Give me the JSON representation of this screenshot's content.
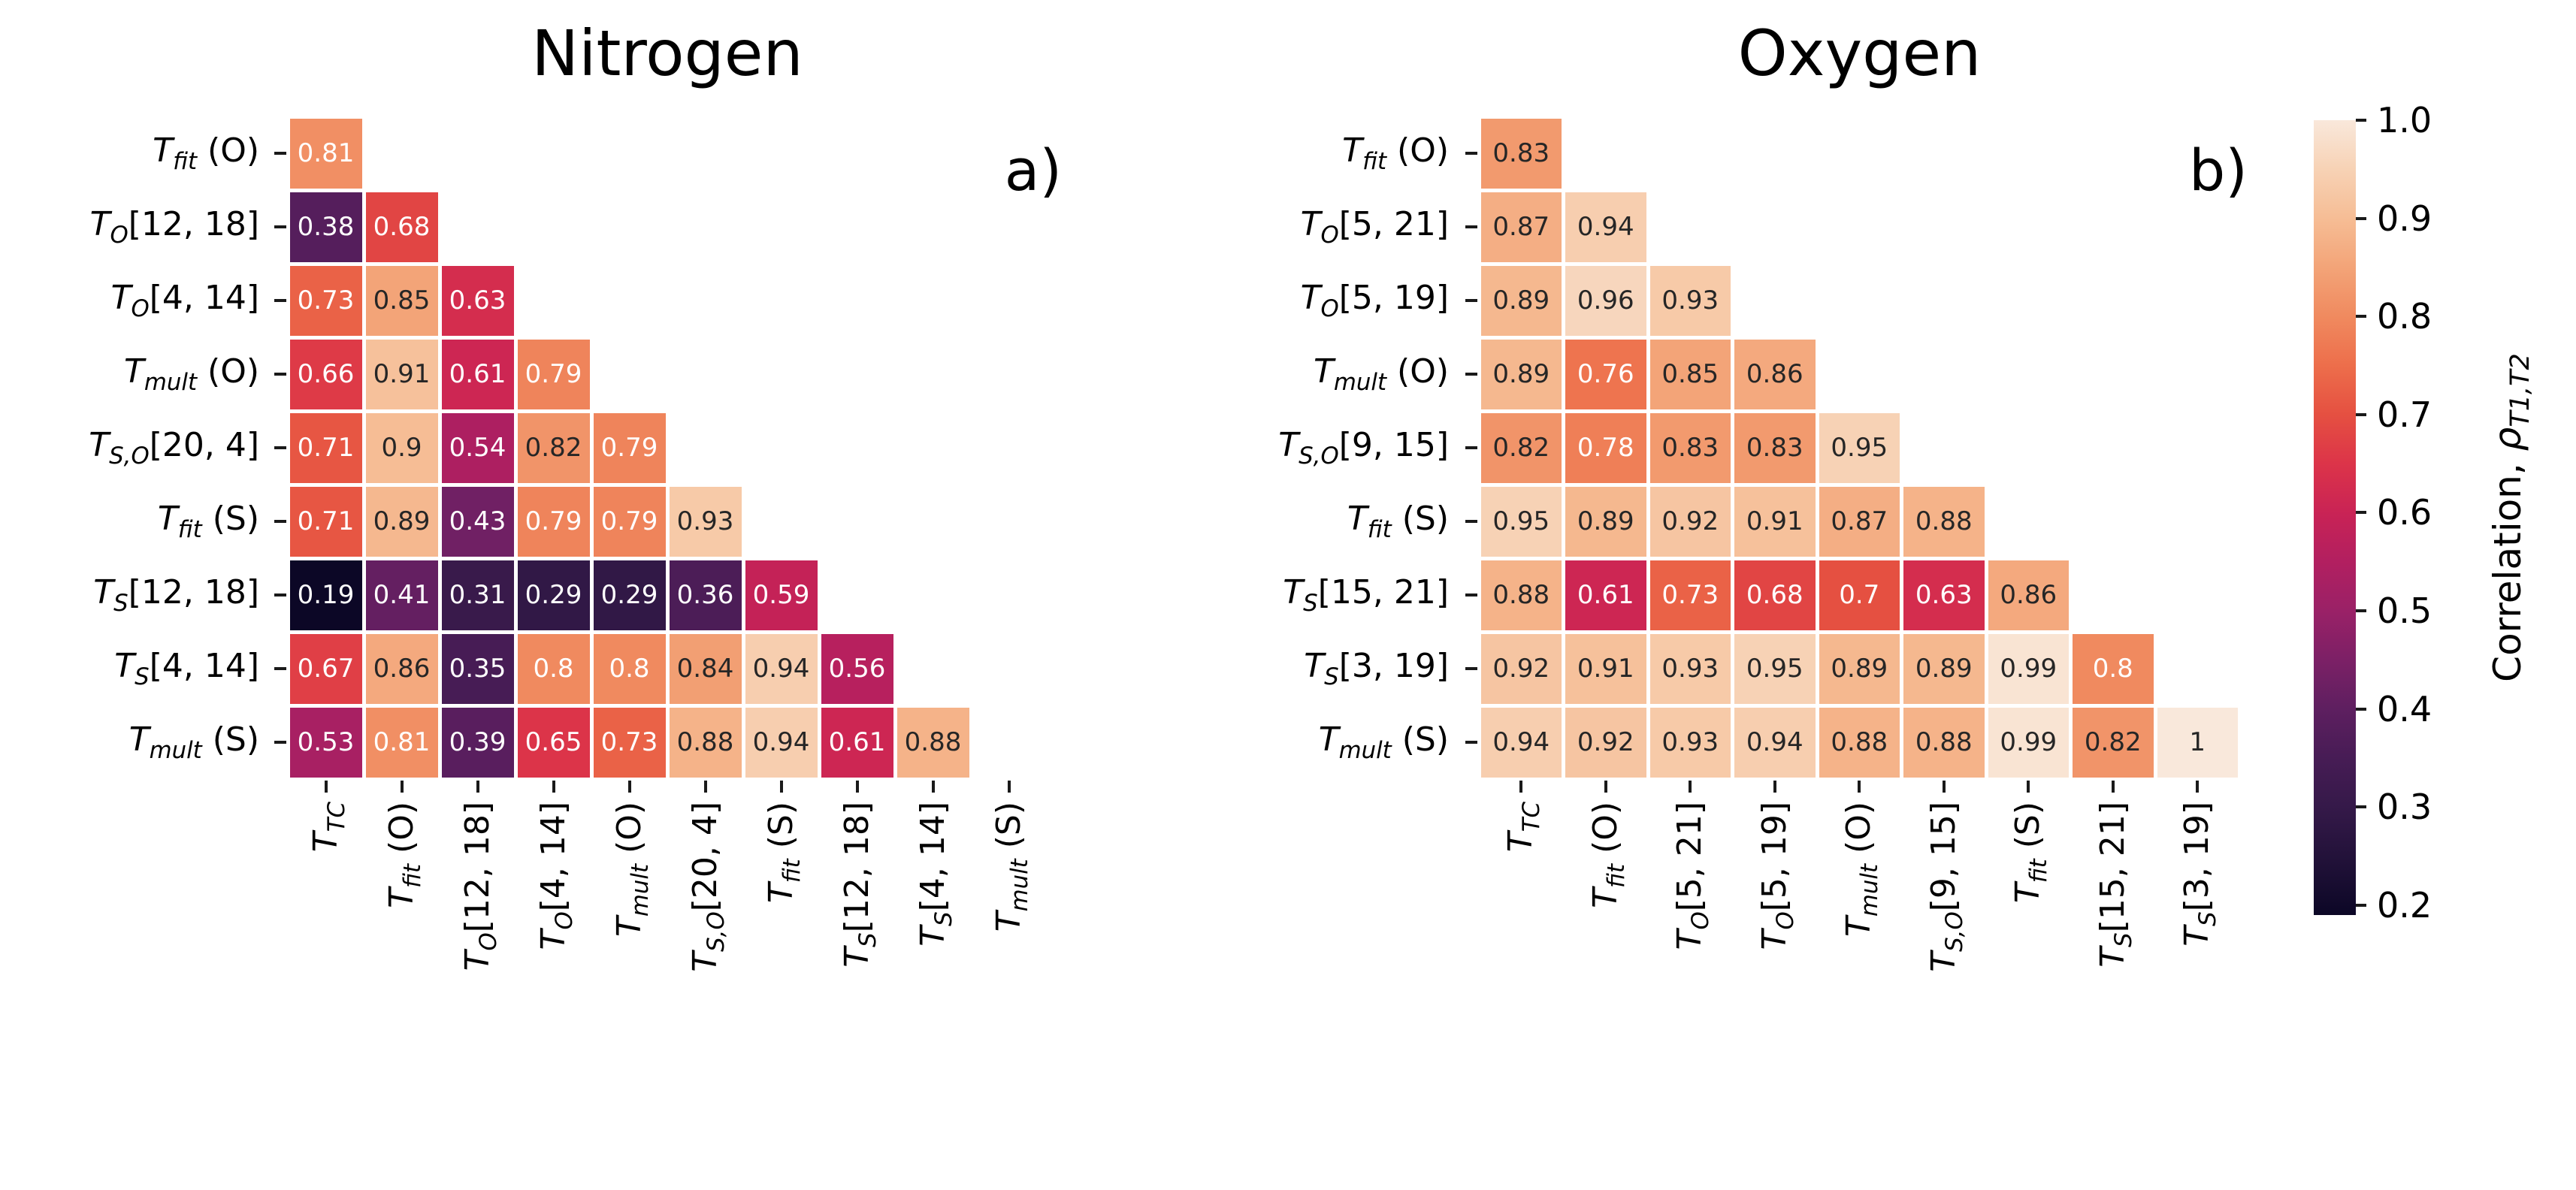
{
  "chart_data": [
    {
      "type": "heatmap",
      "title": "Nitrogen",
      "panel_tag": "a)",
      "x_labels": [
        {
          "b": "T",
          "s": "TC",
          "r": ""
        },
        {
          "b": "T",
          "s": "fit",
          "r": " (O)"
        },
        {
          "b": "T",
          "s": "O",
          "r": "[12, 18]"
        },
        {
          "b": "T",
          "s": "O",
          "r": "[4, 14]"
        },
        {
          "b": "T",
          "s": "mult",
          "r": " (O)"
        },
        {
          "b": "T",
          "s": "S,O",
          "r": "[20, 4]"
        },
        {
          "b": "T",
          "s": "fit",
          "r": " (S)"
        },
        {
          "b": "T",
          "s": "S",
          "r": "[12, 18]"
        },
        {
          "b": "T",
          "s": "S",
          "r": "[4, 14]"
        },
        {
          "b": "T",
          "s": "mult",
          "r": " (S)"
        }
      ],
      "y_labels": [
        {
          "b": "T",
          "s": "fit",
          "r": " (O)"
        },
        {
          "b": "T",
          "s": "O",
          "r": "[12, 18]"
        },
        {
          "b": "T",
          "s": "O",
          "r": "[4, 14]"
        },
        {
          "b": "T",
          "s": "mult",
          "r": " (O)"
        },
        {
          "b": "T",
          "s": "S,O",
          "r": "[20, 4]"
        },
        {
          "b": "T",
          "s": "fit",
          "r": " (S)"
        },
        {
          "b": "T",
          "s": "S",
          "r": "[12, 18]"
        },
        {
          "b": "T",
          "s": "S",
          "r": "[4, 14]"
        },
        {
          "b": "T",
          "s": "mult",
          "r": " (S)"
        }
      ],
      "values": [
        [
          0.81
        ],
        [
          0.38,
          0.68
        ],
        [
          0.73,
          0.85,
          0.63
        ],
        [
          0.66,
          0.91,
          0.61,
          0.79
        ],
        [
          0.71,
          0.9,
          0.54,
          0.82,
          0.79
        ],
        [
          0.71,
          0.89,
          0.43,
          0.79,
          0.79,
          0.93
        ],
        [
          0.19,
          0.41,
          0.31,
          0.29,
          0.29,
          0.36,
          0.59
        ],
        [
          0.67,
          0.86,
          0.35,
          0.8,
          0.8,
          0.84,
          0.94,
          0.56
        ],
        [
          0.53,
          0.81,
          0.39,
          0.65,
          0.73,
          0.88,
          0.94,
          0.61,
          0.88
        ]
      ]
    },
    {
      "type": "heatmap",
      "title": "Oxygen",
      "panel_tag": "b)",
      "x_labels": [
        {
          "b": "T",
          "s": "TC",
          "r": ""
        },
        {
          "b": "T",
          "s": "fit",
          "r": " (O)"
        },
        {
          "b": "T",
          "s": "O",
          "r": "[5, 21]"
        },
        {
          "b": "T",
          "s": "O",
          "r": "[5, 19]"
        },
        {
          "b": "T",
          "s": "mult",
          "r": " (O)"
        },
        {
          "b": "T",
          "s": "S,O",
          "r": "[9, 15]"
        },
        {
          "b": "T",
          "s": "fit",
          "r": " (S)"
        },
        {
          "b": "T",
          "s": "S",
          "r": "[15, 21]"
        },
        {
          "b": "T",
          "s": "S",
          "r": "[3, 19]"
        }
      ],
      "y_labels": [
        {
          "b": "T",
          "s": "fit",
          "r": " (O)"
        },
        {
          "b": "T",
          "s": "O",
          "r": "[5, 21]"
        },
        {
          "b": "T",
          "s": "O",
          "r": "[5, 19]"
        },
        {
          "b": "T",
          "s": "mult",
          "r": " (O)"
        },
        {
          "b": "T",
          "s": "S,O",
          "r": "[9, 15]"
        },
        {
          "b": "T",
          "s": "fit",
          "r": " (S)"
        },
        {
          "b": "T",
          "s": "S",
          "r": "[15, 21]"
        },
        {
          "b": "T",
          "s": "S",
          "r": "[3, 19]"
        },
        {
          "b": "T",
          "s": "mult",
          "r": " (S)"
        }
      ],
      "values": [
        [
          0.83
        ],
        [
          0.87,
          0.94
        ],
        [
          0.89,
          0.96,
          0.93
        ],
        [
          0.89,
          0.76,
          0.85,
          0.86
        ],
        [
          0.82,
          0.78,
          0.83,
          0.83,
          0.95
        ],
        [
          0.95,
          0.89,
          0.92,
          0.91,
          0.87,
          0.88
        ],
        [
          0.88,
          0.61,
          0.73,
          0.68,
          0.7,
          0.63,
          0.86
        ],
        [
          0.92,
          0.91,
          0.93,
          0.95,
          0.89,
          0.89,
          0.99,
          0.8
        ],
        [
          0.94,
          0.92,
          0.93,
          0.94,
          0.88,
          0.88,
          0.99,
          0.82,
          1
        ]
      ]
    }
  ],
  "colorbar": {
    "label_pre": "Correlation, ",
    "label_symbol": "ρ",
    "label_subscript": "T1,T2",
    "colormap_name": "rocket",
    "vmin": 0.19,
    "vmax": 1.0,
    "ticks": [
      {
        "label": "1.0",
        "value": 1.0
      },
      {
        "label": "0.9",
        "value": 0.9
      },
      {
        "label": "0.8",
        "value": 0.8
      },
      {
        "label": "0.7",
        "value": 0.7
      },
      {
        "label": "0.6",
        "value": 0.6
      },
      {
        "label": "0.5",
        "value": 0.5
      },
      {
        "label": "0.4",
        "value": 0.4
      },
      {
        "label": "0.3",
        "value": 0.3
      },
      {
        "label": "0.2",
        "value": 0.2
      }
    ],
    "colormap_anchors": [
      {
        "v": 1.0,
        "c": "#F9E8DB"
      },
      {
        "v": 0.95,
        "c": "#F7D2B5"
      },
      {
        "v": 0.9,
        "c": "#F6BD95"
      },
      {
        "v": 0.85,
        "c": "#F3A478"
      },
      {
        "v": 0.8,
        "c": "#F08A5F"
      },
      {
        "v": 0.75,
        "c": "#ED6E4B"
      },
      {
        "v": 0.7,
        "c": "#E55041"
      },
      {
        "v": 0.65,
        "c": "#DC3449"
      },
      {
        "v": 0.6,
        "c": "#C92355"
      },
      {
        "v": 0.55,
        "c": "#B21F60"
      },
      {
        "v": 0.5,
        "c": "#9A2167"
      },
      {
        "v": 0.45,
        "c": "#7C2066"
      },
      {
        "v": 0.4,
        "c": "#5E1F60"
      },
      {
        "v": 0.35,
        "c": "#471C55"
      },
      {
        "v": 0.3,
        "c": "#351949"
      },
      {
        "v": 0.25,
        "c": "#23123A"
      },
      {
        "v": 0.19,
        "c": "#0C0726"
      }
    ],
    "annot_dark_text_min": 0.82,
    "annot_dark_color": "#262626",
    "annot_light_color": "#ffffff"
  }
}
